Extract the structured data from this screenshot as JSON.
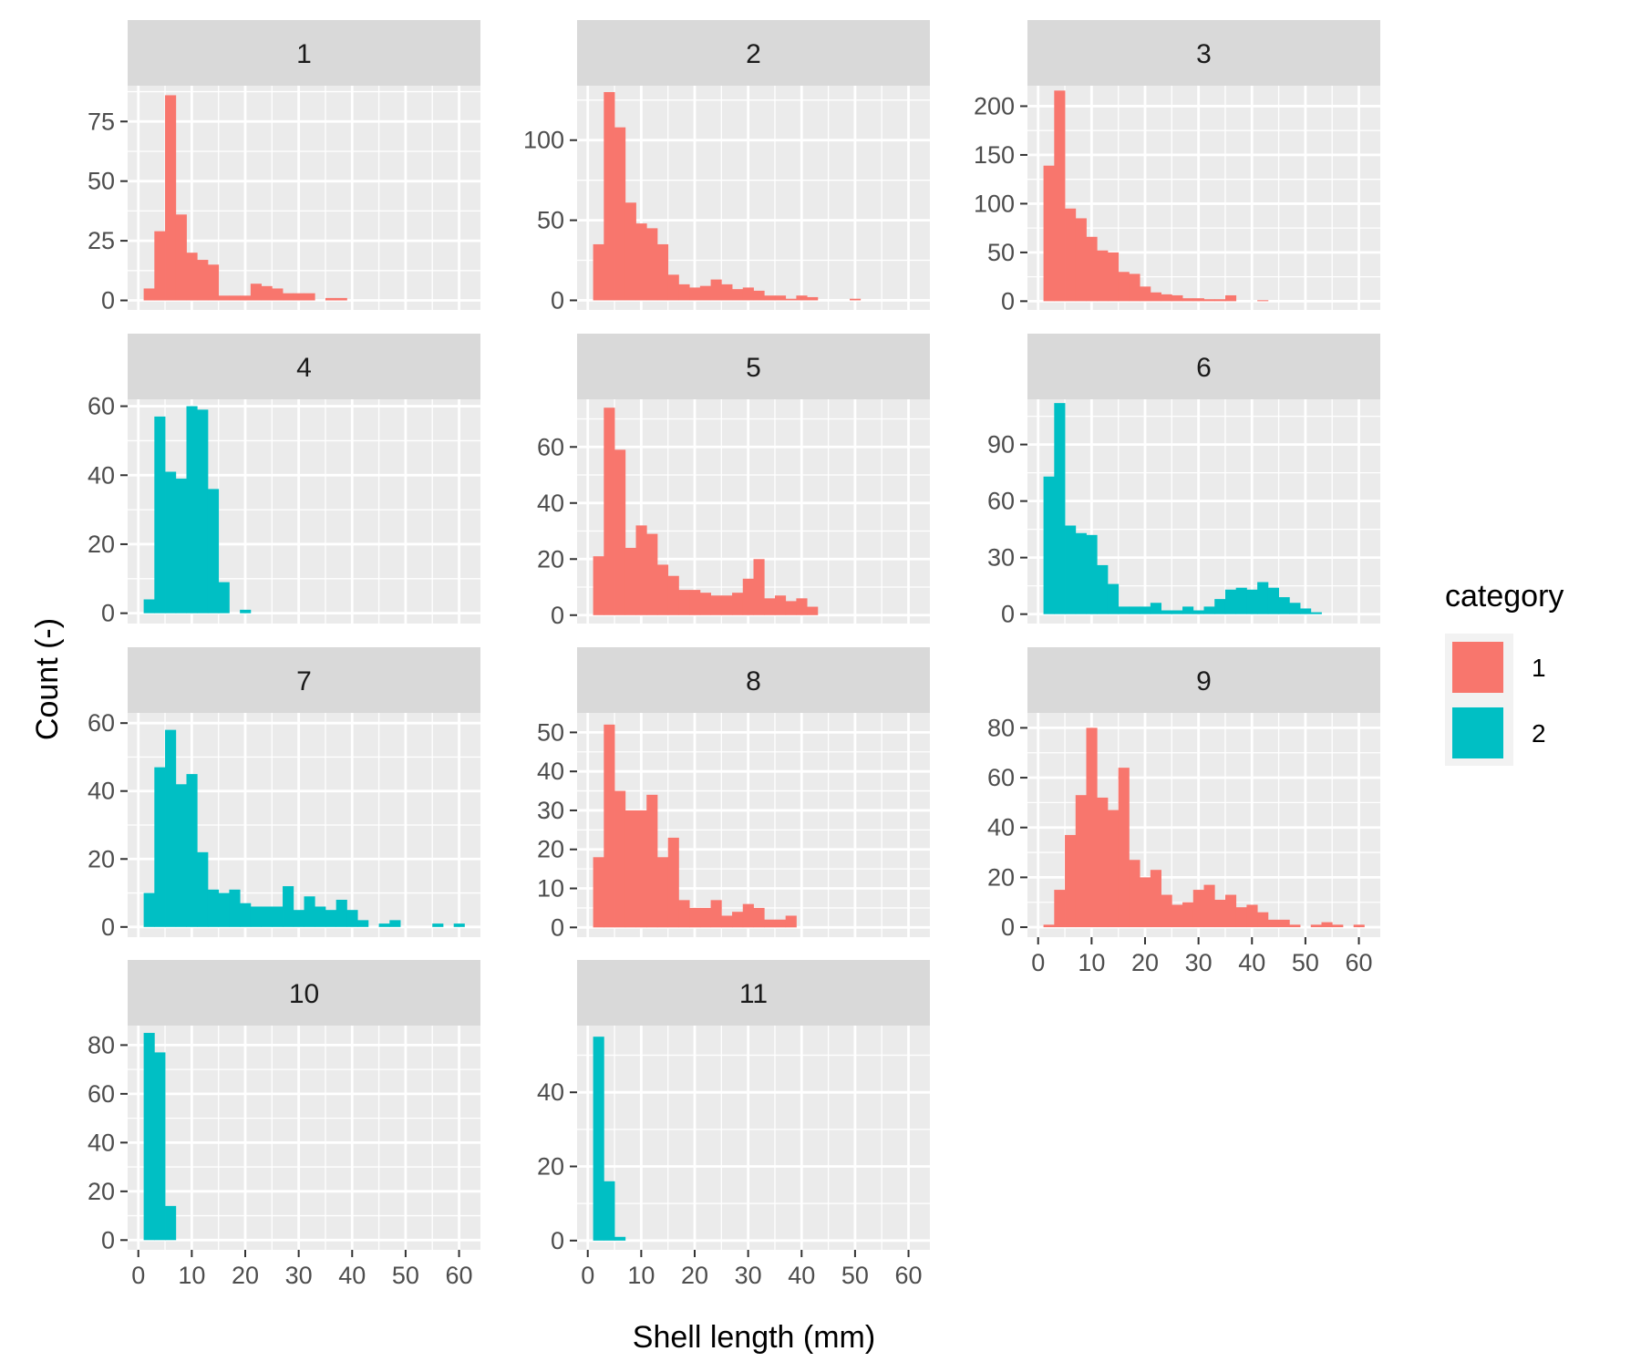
{
  "chart_data": {
    "type": "histogram",
    "xlabel": "Shell length (mm)",
    "ylabel": "Count (-)",
    "x_ticks": [
      "0",
      "10",
      "20",
      "30",
      "40",
      "50",
      "60"
    ],
    "x_range": [
      -2,
      64
    ],
    "bin_width": 2,
    "bin_starts": [
      1,
      3,
      5,
      7,
      9,
      11,
      13,
      15,
      17,
      19,
      21,
      23,
      25,
      27,
      29,
      31,
      33,
      35,
      37,
      39,
      41,
      43,
      45,
      47,
      49,
      51,
      53,
      55,
      57,
      59
    ],
    "legend": {
      "title": "category",
      "entries": [
        {
          "label": "1",
          "color": "#F8766D"
        },
        {
          "label": "2",
          "color": "#00BFC4"
        }
      ]
    },
    "panels": [
      {
        "label": "1",
        "category": "1",
        "ylim": [
          -4,
          90
        ],
        "y_ticks": [
          0,
          25,
          50,
          75
        ],
        "counts": [
          5,
          29,
          86,
          36,
          20,
          17,
          15,
          2,
          2,
          2,
          7,
          6,
          5,
          3,
          3,
          3,
          0,
          1,
          1,
          0,
          0,
          0,
          0,
          0,
          0,
          0,
          0,
          0,
          0,
          0
        ]
      },
      {
        "label": "2",
        "category": "1",
        "ylim": [
          -6,
          134
        ],
        "y_ticks": [
          0,
          50,
          100
        ],
        "counts": [
          35,
          130,
          108,
          61,
          48,
          45,
          35,
          16,
          10,
          8,
          9,
          13,
          10,
          7,
          8,
          6,
          3,
          3,
          1,
          3,
          2,
          0,
          0,
          0,
          1,
          0,
          0,
          0,
          0,
          0
        ]
      },
      {
        "label": "3",
        "category": "1",
        "ylim": [
          -9,
          221
        ],
        "y_ticks": [
          0,
          50,
          100,
          150,
          200
        ],
        "counts": [
          139,
          216,
          95,
          85,
          66,
          52,
          50,
          30,
          28,
          15,
          9,
          7,
          6,
          3,
          3,
          2,
          2,
          6,
          0,
          0,
          1,
          0,
          0,
          0,
          0,
          0,
          0,
          0,
          0,
          0
        ]
      },
      {
        "label": "4",
        "category": "2",
        "ylim": [
          -3,
          62
        ],
        "y_ticks": [
          0,
          20,
          40,
          60
        ],
        "counts": [
          4,
          57,
          41,
          39,
          60,
          59,
          36,
          9,
          0,
          1,
          0,
          0,
          0,
          0,
          0,
          0,
          0,
          0,
          0,
          0,
          0,
          0,
          0,
          0,
          0,
          0,
          0,
          0,
          0,
          0
        ]
      },
      {
        "label": "5",
        "category": "1",
        "ylim": [
          -3,
          77
        ],
        "y_ticks": [
          0,
          20,
          40,
          60
        ],
        "counts": [
          21,
          74,
          59,
          24,
          32,
          29,
          18,
          14,
          9,
          9,
          8,
          7,
          7,
          8,
          13,
          20,
          6,
          7,
          5,
          6,
          3,
          0,
          0,
          0,
          0,
          0,
          0,
          0,
          0,
          0
        ]
      },
      {
        "label": "6",
        "category": "2",
        "ylim": [
          -5,
          114
        ],
        "y_ticks": [
          0,
          30,
          60,
          90
        ],
        "counts": [
          73,
          112,
          47,
          43,
          42,
          26,
          16,
          4,
          4,
          4,
          6,
          2,
          2,
          4,
          2,
          4,
          8,
          13,
          14,
          13,
          17,
          14,
          9,
          6,
          3,
          1,
          0,
          0,
          0,
          0
        ]
      },
      {
        "label": "7",
        "category": "2",
        "ylim": [
          -3,
          63
        ],
        "y_ticks": [
          0,
          20,
          40,
          60
        ],
        "counts": [
          10,
          47,
          58,
          42,
          45,
          22,
          11,
          10,
          11,
          7,
          6,
          6,
          6,
          12,
          5,
          9,
          6,
          5,
          8,
          5,
          2,
          0,
          1,
          2,
          0,
          0,
          0,
          1,
          0,
          1
        ]
      },
      {
        "label": "8",
        "category": "1",
        "ylim": [
          -2.5,
          55
        ],
        "y_ticks": [
          0,
          10,
          20,
          30,
          40,
          50
        ],
        "counts": [
          18,
          52,
          35,
          30,
          30,
          34,
          18,
          23,
          7,
          5,
          5,
          7,
          3,
          4,
          6,
          5,
          2,
          2,
          3,
          0,
          0,
          0,
          0,
          0,
          0,
          0,
          0,
          0,
          0,
          0
        ]
      },
      {
        "label": "9",
        "category": "1",
        "ylim": [
          -4,
          86
        ],
        "y_ticks": [
          0,
          20,
          40,
          60,
          80
        ],
        "counts": [
          1,
          15,
          37,
          53,
          80,
          52,
          47,
          64,
          27,
          20,
          23,
          13,
          9,
          10,
          15,
          17,
          11,
          13,
          8,
          9,
          6,
          3,
          3,
          1,
          0,
          1,
          2,
          1,
          0,
          1
        ]
      },
      {
        "label": "10",
        "category": "2",
        "ylim": [
          -4,
          88
        ],
        "y_ticks": [
          0,
          20,
          40,
          60,
          80
        ],
        "counts": [
          85,
          77,
          14,
          0,
          0,
          0,
          0,
          0,
          0,
          0,
          0,
          0,
          0,
          0,
          0,
          0,
          0,
          0,
          0,
          0,
          0,
          0,
          0,
          0,
          0,
          0,
          0,
          0,
          0,
          0
        ]
      },
      {
        "label": "11",
        "category": "2",
        "ylim": [
          -2.5,
          58
        ],
        "y_ticks": [
          0,
          20,
          40
        ],
        "counts": [
          55,
          16,
          1,
          0,
          0,
          0,
          0,
          0,
          0,
          0,
          0,
          0,
          0,
          0,
          0,
          0,
          0,
          0,
          0,
          0,
          0,
          0,
          0,
          0,
          0,
          0,
          0,
          0,
          0,
          0
        ]
      }
    ]
  }
}
